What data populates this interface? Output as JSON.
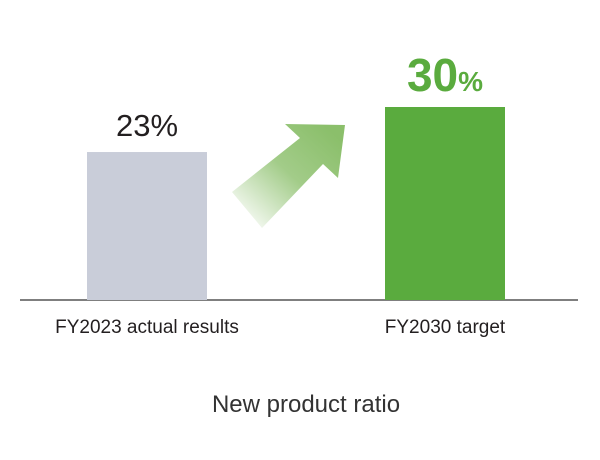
{
  "chart_data": {
    "type": "bar",
    "title": "New product ratio",
    "categories": [
      "FY2023 actual results",
      "FY2030 target"
    ],
    "values": [
      23,
      30
    ],
    "value_labels": [
      "23%",
      "30%"
    ],
    "colors": [
      "#c9cdd9",
      "#5aab3e"
    ],
    "value_label_colors": [
      "#231f20",
      "#5aab3e"
    ]
  }
}
